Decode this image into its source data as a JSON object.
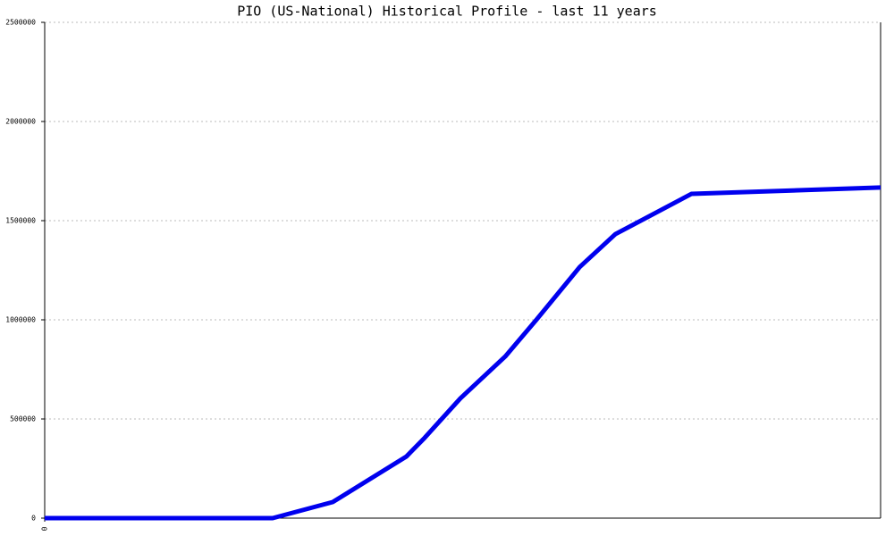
{
  "chart_data": {
    "type": "line",
    "title": "PIO (US-National) Historical Profile - last 11 years",
    "x": [
      0,
      3.0,
      3.79,
      4.76,
      5.0,
      5.47,
      6.06,
      6.47,
      7.04,
      7.51,
      8.51,
      11
    ],
    "series": [
      {
        "color": "#0000ee",
        "values": [
          0,
          0,
          81000,
          311000,
          405000,
          604000,
          815000,
          1000000,
          1266000,
          1432000,
          1635000,
          1667000
        ]
      }
    ],
    "xlim": [
      0,
      11
    ],
    "xticks": [
      0
    ],
    "ylim": [
      0,
      2500000
    ],
    "yticks": [
      0,
      500000,
      1000000,
      1500000,
      2000000,
      2500000
    ],
    "grid": true
  }
}
